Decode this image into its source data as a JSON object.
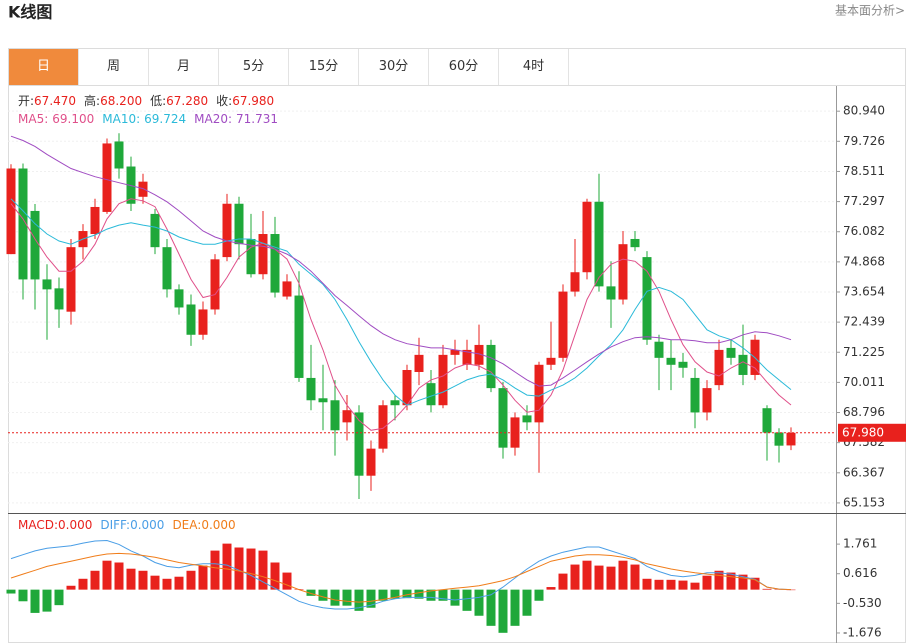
{
  "header": {
    "title": "K线图",
    "link": "基本面分析>"
  },
  "tabs": [
    "日",
    "周",
    "月",
    "5分",
    "15分",
    "30分",
    "60分",
    "4时"
  ],
  "active_tab": 0,
  "chart_data": [
    {
      "type": "candlestick",
      "ylim": [
        64.747,
        81.955
      ],
      "yticks": [
        {
          "value": 80.94,
          "label": "80.940"
        },
        {
          "value": 79.726,
          "label": "79.726"
        },
        {
          "value": 78.511,
          "label": "78.511"
        },
        {
          "value": 77.297,
          "label": "77.297"
        },
        {
          "value": 76.082,
          "label": "76.082"
        },
        {
          "value": 74.868,
          "label": "74.868"
        },
        {
          "value": 73.654,
          "label": "73.654"
        },
        {
          "value": 72.439,
          "label": "72.439"
        },
        {
          "value": 71.225,
          "label": "71.225"
        },
        {
          "value": 70.011,
          "label": "70.011"
        },
        {
          "value": 68.796,
          "label": "68.796"
        },
        {
          "value": 67.582,
          "label": "67.582"
        },
        {
          "value": 66.367,
          "label": "66.367"
        },
        {
          "value": 65.153,
          "label": "65.153"
        }
      ],
      "grid": true,
      "up_color": "#e8211d",
      "down_color": "#1fa83a",
      "legend": [
        {
          "name": "开:",
          "value": "67.470"
        },
        {
          "name": "高:",
          "value": "68.200"
        },
        {
          "name": "低:",
          "value": "67.280"
        },
        {
          "name": "收:",
          "value": "67.980"
        }
      ],
      "last_price": {
        "value": 67.98,
        "label": "67.980"
      },
      "ohlc": {
        "open": [
          75.18,
          78.63,
          76.92,
          74.16,
          73.8,
          72.86,
          75.46,
          75.99,
          76.88,
          79.72,
          78.71,
          77.49,
          76.8,
          75.46,
          73.76,
          73.15,
          71.93,
          72.95,
          75.06,
          77.21,
          75.79,
          74.37,
          75.99,
          73.47,
          73.51,
          70.19,
          69.37,
          69.29,
          68.4,
          68.8,
          66.25,
          67.34,
          69.29,
          69.09,
          70.43,
          69.98,
          69.09,
          71.12,
          70.72,
          70.72,
          71.52,
          69.78,
          67.38,
          68.68,
          68.4,
          70.72,
          71.0,
          73.67,
          74.45,
          77.29,
          73.88,
          73.35,
          75.79,
          75.06,
          71.65,
          71.0,
          70.84,
          70.19,
          68.8,
          69.9,
          71.4,
          71.12,
          70.31,
          68.97,
          67.99,
          67.47
        ],
        "high": [
          78.8,
          78.83,
          77.2,
          74.77,
          74.24,
          75.79,
          76.39,
          77.41,
          79.84,
          80.05,
          79.11,
          78.42,
          77.0,
          75.79,
          73.96,
          73.55,
          73.27,
          75.18,
          77.61,
          77.49,
          76.8,
          76.92,
          76.68,
          74.37,
          74.49,
          71.52,
          70.72,
          70.1,
          69.5,
          69.09,
          67.67,
          69.29,
          69.5,
          70.72,
          71.81,
          70.51,
          71.52,
          71.73,
          71.73,
          72.34,
          71.73,
          70.03,
          68.8,
          69.09,
          70.84,
          72.46,
          73.96,
          75.79,
          77.41,
          78.42,
          74.89,
          76.11,
          76.11,
          75.3,
          71.93,
          71.73,
          71.2,
          70.59,
          70.1,
          71.73,
          71.73,
          72.34,
          71.93,
          69.09,
          68.16,
          68.2
        ],
        "low": [
          75.18,
          73.35,
          72.95,
          71.73,
          72.21,
          72.34,
          74.97,
          75.79,
          76.8,
          78.22,
          76.92,
          77.21,
          75.18,
          73.43,
          72.74,
          71.48,
          71.73,
          72.74,
          74.89,
          74.97,
          74.24,
          74.16,
          73.43,
          73.35,
          70.03,
          68.89,
          68.08,
          67.06,
          67.67,
          65.31,
          65.64,
          67.18,
          68.48,
          68.89,
          69.9,
          68.8,
          68.97,
          70.72,
          70.51,
          70.51,
          69.62,
          66.94,
          67.06,
          68.08,
          66.37,
          70.51,
          70.84,
          73.47,
          74.16,
          73.67,
          72.21,
          73.15,
          75.3,
          71.52,
          69.7,
          69.7,
          70.2,
          68.16,
          68.48,
          69.7,
          70.72,
          69.9,
          70.1,
          66.86,
          66.78,
          67.28
        ],
        "close": [
          78.63,
          74.16,
          74.16,
          73.76,
          72.95,
          75.46,
          76.11,
          77.08,
          79.64,
          78.63,
          77.21,
          78.1,
          75.46,
          73.76,
          73.03,
          71.93,
          72.95,
          74.97,
          77.21,
          75.58,
          74.37,
          75.99,
          73.63,
          74.08,
          70.19,
          69.29,
          69.21,
          68.08,
          68.89,
          66.25,
          67.34,
          69.09,
          69.09,
          70.51,
          71.12,
          69.09,
          71.12,
          71.32,
          71.32,
          71.52,
          69.78,
          67.38,
          68.6,
          68.4,
          70.72,
          71.0,
          73.67,
          74.45,
          77.29,
          73.88,
          73.35,
          75.58,
          75.46,
          71.73,
          71.0,
          70.72,
          70.6,
          68.8,
          69.78,
          71.32,
          71.0,
          70.31,
          71.73,
          67.99,
          67.46,
          67.98
        ]
      },
      "series": [
        {
          "name": "MA5:",
          "legend_value": "69.100",
          "color": "#e0508a",
          "values": [
            77.21,
            76.6,
            75.79,
            75.06,
            74.49,
            74.49,
            74.89,
            75.58,
            76.6,
            77.21,
            77.41,
            77.33,
            77.09,
            76.19,
            75.18,
            74.16,
            73.43,
            73.55,
            74.24,
            75.06,
            75.46,
            75.62,
            75.38,
            74.98,
            74.0,
            72.54,
            71.32,
            69.9,
            69.09,
            68.48,
            68.08,
            68.16,
            68.56,
            69.09,
            69.78,
            70.11,
            70.27,
            70.59,
            70.76,
            70.67,
            70.43,
            69.9,
            69.29,
            68.81,
            68.89,
            69.5,
            70.51,
            71.93,
            73.35,
            74.24,
            74.77,
            74.98,
            74.89,
            74.49,
            73.68,
            72.54,
            71.53,
            70.84,
            70.43,
            70.27,
            70.59,
            70.84,
            70.59,
            70.02,
            69.5,
            69.1
          ]
        },
        {
          "name": "MA10:",
          "legend_value": "69.724",
          "color": "#2bbad9",
          "values": [
            77.41,
            76.92,
            76.4,
            75.99,
            75.71,
            75.58,
            75.79,
            75.95,
            76.19,
            76.35,
            76.44,
            76.35,
            76.27,
            76.11,
            75.87,
            75.71,
            75.58,
            75.58,
            75.71,
            75.79,
            75.79,
            75.62,
            75.46,
            75.3,
            74.77,
            74.37,
            73.96,
            73.35,
            72.54,
            71.65,
            70.84,
            70.11,
            69.5,
            69.09,
            69.29,
            69.46,
            69.62,
            69.86,
            70.11,
            70.27,
            70.35,
            70.11,
            69.78,
            69.5,
            69.46,
            69.7,
            69.9,
            70.19,
            70.59,
            71.08,
            71.53,
            72.13,
            72.95,
            73.68,
            73.84,
            73.68,
            73.35,
            72.74,
            72.13,
            71.89,
            71.73,
            71.4,
            71.0,
            70.51,
            70.11,
            69.72
          ]
        },
        {
          "name": "MA20:",
          "legend_value": "71.731",
          "color": "#a04cc2",
          "values": [
            79.93,
            79.76,
            79.52,
            79.2,
            78.91,
            78.63,
            78.46,
            78.3,
            78.18,
            78.06,
            77.94,
            77.82,
            77.57,
            77.29,
            76.92,
            76.52,
            76.11,
            75.87,
            75.71,
            75.62,
            75.54,
            75.5,
            75.38,
            75.18,
            74.89,
            74.49,
            74.0,
            73.51,
            73.11,
            72.7,
            72.3,
            71.97,
            71.73,
            71.57,
            71.49,
            71.4,
            71.4,
            71.32,
            71.24,
            71.16,
            71.0,
            70.76,
            70.43,
            70.11,
            69.86,
            69.9,
            70.19,
            70.51,
            70.84,
            71.16,
            71.44,
            71.65,
            71.81,
            71.85,
            71.81,
            71.73,
            71.73,
            71.69,
            71.61,
            71.61,
            71.73,
            71.93,
            72.05,
            72.01,
            71.89,
            71.73
          ]
        }
      ]
    },
    {
      "type": "macd",
      "ylim": [
        -2.064,
        2.926
      ],
      "yticks": [
        {
          "value": 1.761,
          "label": "1.761"
        },
        {
          "value": 0.616,
          "label": "0.616"
        },
        {
          "value": -0.53,
          "label": "-0.530"
        },
        {
          "value": -1.676,
          "label": "-1.676"
        }
      ],
      "up_color": "#e8211d",
      "down_color": "#1fa83a",
      "series": [
        {
          "name": "MACD:",
          "legend_value": "0.000",
          "color": "#e8211d",
          "style": "bar",
          "values": [
            -0.15,
            -0.45,
            -0.9,
            -0.85,
            -0.6,
            0.15,
            0.42,
            0.73,
            1.12,
            1.05,
            0.81,
            0.73,
            0.54,
            0.42,
            0.5,
            0.73,
            0.93,
            1.51,
            1.78,
            1.63,
            1.59,
            1.51,
            1.05,
            0.66,
            0.02,
            -0.24,
            -0.43,
            -0.62,
            -0.62,
            -0.82,
            -0.7,
            -0.43,
            -0.35,
            -0.33,
            -0.35,
            -0.43,
            -0.43,
            -0.62,
            -0.82,
            -1.01,
            -1.4,
            -1.67,
            -1.4,
            -1.01,
            -0.43,
            0.1,
            0.62,
            0.97,
            1.12,
            0.93,
            0.89,
            1.12,
            0.97,
            0.42,
            0.38,
            0.38,
            0.35,
            0.27,
            0.54,
            0.73,
            0.66,
            0.58,
            0.46,
            0.03,
            0.02,
            0.0
          ]
        },
        {
          "name": "DIFF:",
          "legend_value": "0.000",
          "color": "#4a9ee6",
          "style": "line",
          "values": [
            1.2,
            1.35,
            1.5,
            1.6,
            1.65,
            1.7,
            1.8,
            1.88,
            1.9,
            1.75,
            1.5,
            1.3,
            1.05,
            0.9,
            0.85,
            0.95,
            1.0,
            1.0,
            0.95,
            0.75,
            0.55,
            0.3,
            0.05,
            -0.2,
            -0.45,
            -0.6,
            -0.7,
            -0.75,
            -0.75,
            -0.7,
            -0.6,
            -0.45,
            -0.35,
            -0.3,
            -0.3,
            -0.3,
            -0.35,
            -0.4,
            -0.35,
            -0.3,
            -0.2,
            0.1,
            0.45,
            0.8,
            1.1,
            1.3,
            1.45,
            1.55,
            1.65,
            1.65,
            1.5,
            1.35,
            1.2,
            0.9,
            0.7,
            0.55,
            0.5,
            0.55,
            0.65,
            0.65,
            0.6,
            0.5,
            0.4,
            0.1,
            0.02,
            0.0
          ]
        },
        {
          "name": "DEA:",
          "legend_value": "0.000",
          "color": "#f07d1a",
          "style": "line",
          "values": [
            0.45,
            0.6,
            0.75,
            0.9,
            1.0,
            1.1,
            1.2,
            1.3,
            1.38,
            1.4,
            1.38,
            1.32,
            1.25,
            1.15,
            1.05,
            0.98,
            0.92,
            0.85,
            0.8,
            0.72,
            0.62,
            0.5,
            0.35,
            0.18,
            0.0,
            -0.15,
            -0.28,
            -0.4,
            -0.45,
            -0.48,
            -0.45,
            -0.38,
            -0.3,
            -0.2,
            -0.12,
            -0.05,
            0.0,
            0.05,
            0.1,
            0.15,
            0.25,
            0.35,
            0.5,
            0.7,
            0.9,
            1.1,
            1.2,
            1.3,
            1.35,
            1.35,
            1.32,
            1.25,
            1.15,
            1.0,
            0.9,
            0.8,
            0.72,
            0.65,
            0.6,
            0.55,
            0.5,
            0.45,
            0.38,
            0.1,
            0.02,
            0.0
          ]
        }
      ]
    }
  ]
}
